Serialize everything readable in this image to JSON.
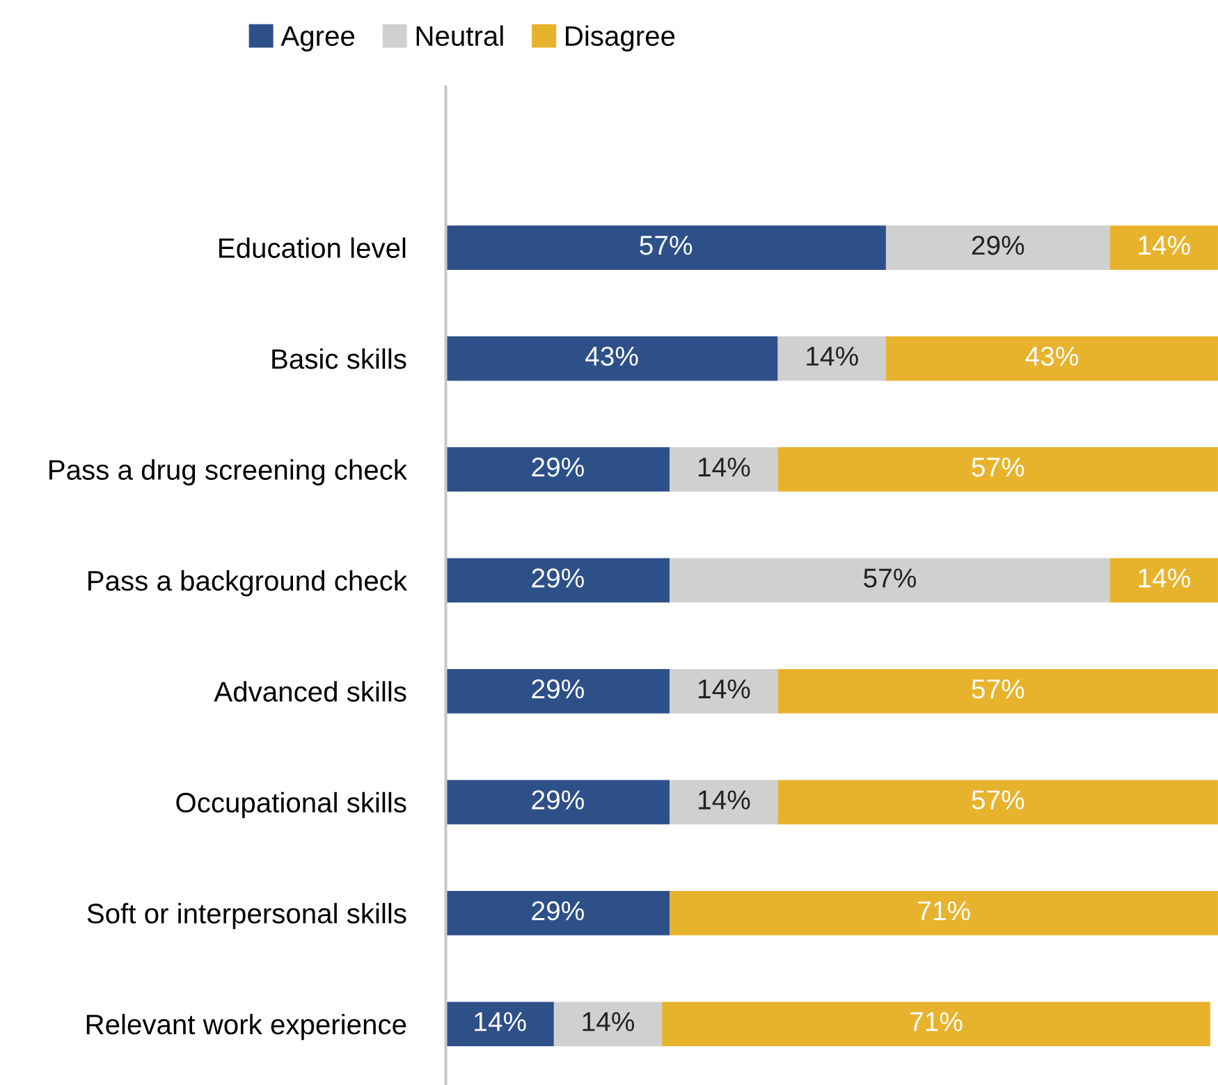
{
  "chart_data": {
    "type": "bar",
    "orientation": "horizontal",
    "stacked": true,
    "legend": "top",
    "grid": false,
    "categories": [
      "Education level",
      "Basic skills",
      "Pass a drug screening check",
      "Pass a background check",
      "Advanced skills",
      "Occupational skills",
      "Soft or interpersonal skills",
      "Relevant work experience"
    ],
    "series": [
      {
        "name": "Agree",
        "color": "#2e5089",
        "values": [
          57,
          43,
          29,
          29,
          29,
          29,
          29,
          14
        ],
        "value_labels": [
          "57%",
          "43%",
          "29%",
          "29%",
          "29%",
          "29%",
          "29%",
          "14%"
        ]
      },
      {
        "name": "Neutral",
        "color": "#d0d0d0",
        "values": [
          29,
          14,
          14,
          57,
          14,
          14,
          0,
          14
        ],
        "value_labels": [
          "29%",
          "14%",
          "14%",
          "57%",
          "14%",
          "14%",
          null,
          "14%"
        ]
      },
      {
        "name": "Disagree",
        "color": "#e8b32c",
        "values": [
          14,
          43,
          57,
          14,
          57,
          57,
          71,
          71
        ],
        "value_labels": [
          "14%",
          "43%",
          "57%",
          "14%",
          "57%",
          "57%",
          "71%",
          "71%"
        ]
      }
    ]
  }
}
